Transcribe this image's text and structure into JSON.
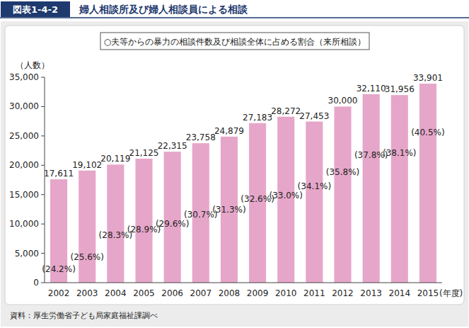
{
  "chart_data": {
    "type": "bar",
    "title": "婦人相談所及び婦人相談員による相談",
    "subtitle": "○夫等からの暴力の相談件数及び相談全体に占める割合（来所相談）",
    "annotations": [
      "図表1-4-2",
      "資料：厚生労働省子ども局家庭福祉課調べ"
    ],
    "ylabel": "（人数）",
    "xlabel": "(年度)",
    "categories": [
      "2002",
      "2003",
      "2004",
      "2005",
      "2006",
      "2007",
      "2008",
      "2009",
      "2010",
      "2011",
      "2012",
      "2013",
      "2014",
      "2015"
    ],
    "series": [
      {
        "type": "bar",
        "color": "#e6a6c9",
        "data_labels": true,
        "values": [
          17611,
          19102,
          20119,
          21125,
          22315,
          23758,
          24879,
          27183,
          28272,
          27453,
          30000,
          32110,
          31956,
          33901
        ],
        "value_labels": [
          "17,611",
          "19,102",
          "20,119",
          "21,125",
          "22,315",
          "23,758",
          "24,879",
          "27,183",
          "28,272",
          "27,453",
          "30,000",
          "32,110",
          "31,956",
          "33,901"
        ]
      },
      {
        "type": "text",
        "axis": "y2",
        "color": "#222222",
        "values": [
          24.2,
          25.6,
          28.3,
          28.9,
          29.6,
          30.7,
          31.3,
          32.6,
          33.0,
          34.1,
          35.8,
          37.8,
          38.1,
          40.5
        ],
        "value_labels": [
          "(24.2%)",
          "(25.6%)",
          "(28.3%)",
          "(28.9%)",
          "(29.6%)",
          "(30.7%)",
          "(31.3%)",
          "(32.6%)",
          "(33.0%)",
          "(34.1%)",
          "(35.8%)",
          "(37.8%)",
          "(38.1%)",
          "(40.5%)"
        ]
      }
    ],
    "ylim": [
      0,
      35000
    ],
    "yticks": [
      0,
      {
        "value": 5000,
        "label": "5,000"
      },
      {
        "value": 10000,
        "label": "10,000"
      },
      {
        "value": 15000,
        "label": "15,000"
      },
      {
        "value": 20000,
        "label": "20,000"
      },
      {
        "value": 25000,
        "label": "25,000"
      },
      {
        "value": 30000,
        "label": "30,000"
      },
      {
        "value": 35000,
        "label": "35,000"
      }
    ],
    "y2lim": [
      22.6,
      47.1
    ],
    "y2ticks": [],
    "grid": false
  }
}
